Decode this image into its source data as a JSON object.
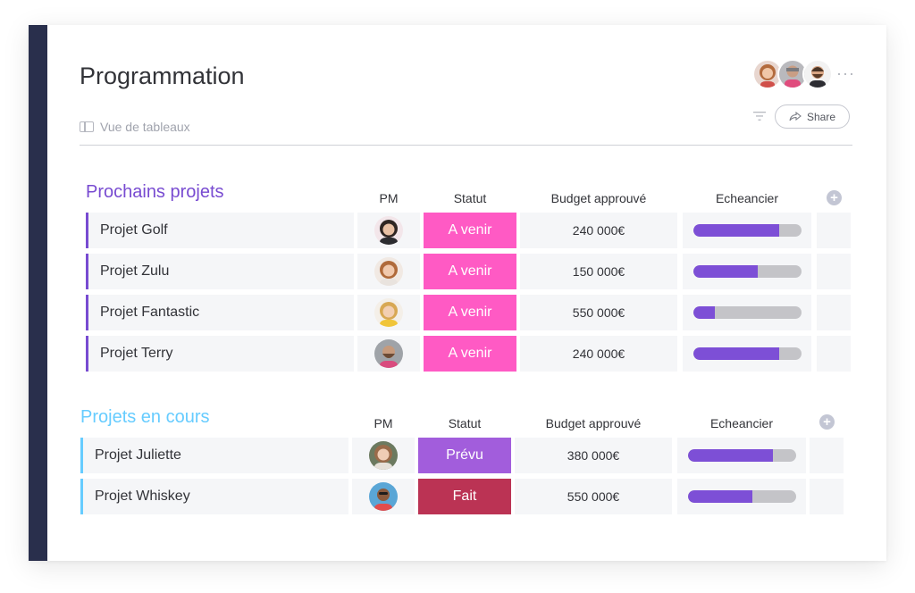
{
  "board": {
    "title": "Programmation",
    "view_label": "Vue de tableaux",
    "share_label": "Share",
    "more_label": "···",
    "members": [
      "member-1-avatar",
      "member-2-avatar",
      "member-3-avatar"
    ]
  },
  "colors": {
    "sidebar": "#292f4c",
    "group1": "#784bd1",
    "group2": "#66ccff",
    "status_a_venir": "#ff5ac4",
    "status_prevu": "#a25ddc",
    "status_fait": "#bb3354",
    "timeline_fill": "#7d4fd6",
    "timeline_track": "#c4c4c8"
  },
  "groups": [
    {
      "title": "Prochains projets",
      "columns": {
        "pm": "PM",
        "status": "Statut",
        "budget": "Budget approuvé",
        "timeline": "Echeancier"
      },
      "rows": [
        {
          "name": "Projet Golf",
          "status": "A venir",
          "budget": "240 000€",
          "progress": 0.8
        },
        {
          "name": "Projet Zulu",
          "status": "A venir",
          "budget": "150 000€",
          "progress": 0.6
        },
        {
          "name": "Projet Fantastic",
          "status": "A venir",
          "budget": "550 000€",
          "progress": 0.2
        },
        {
          "name": "Projet Terry",
          "status": "A venir",
          "budget": "240 000€",
          "progress": 0.8
        }
      ]
    },
    {
      "title": "Projets en cours",
      "columns": {
        "pm": "PM",
        "status": "Statut",
        "budget": "Budget approuvé",
        "timeline": "Echeancier"
      },
      "rows": [
        {
          "name": "Projet Juliette",
          "status": "Prévu",
          "budget": "380 000€",
          "progress": 0.79
        },
        {
          "name": "Projet Whiskey",
          "status": "Fait",
          "budget": "550 000€",
          "progress": 0.6
        }
      ]
    }
  ]
}
